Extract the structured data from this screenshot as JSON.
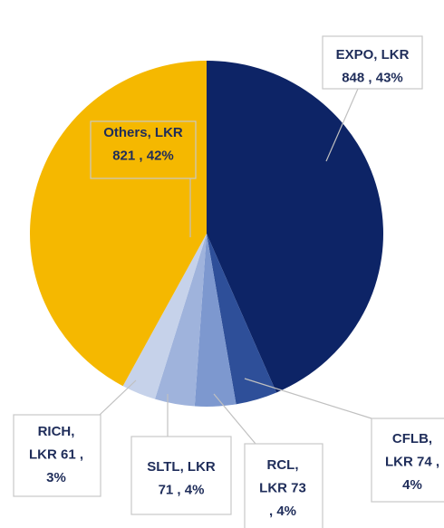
{
  "chart_data": {
    "type": "pie",
    "values": [
      848,
      74,
      73,
      71,
      61,
      821
    ],
    "value_labels": [
      [
        "EXPO, LKR",
        "848 , 43%"
      ],
      [
        "CFLB,",
        "LKR 74 ,",
        "4%"
      ],
      [
        "RCL,",
        "LKR 73",
        ", 4%"
      ],
      [
        "SLTL, LKR",
        "71 , 4%"
      ],
      [
        "RICH,",
        "LKR 61 ,",
        "3%"
      ],
      [
        "Others, LKR",
        "821 , 42%"
      ]
    ],
    "colors": [
      "#0d2466",
      "#2e4f99",
      "#7d98cf",
      "#9fb3dc",
      "#c6d2ea",
      "#f5b800"
    ]
  }
}
